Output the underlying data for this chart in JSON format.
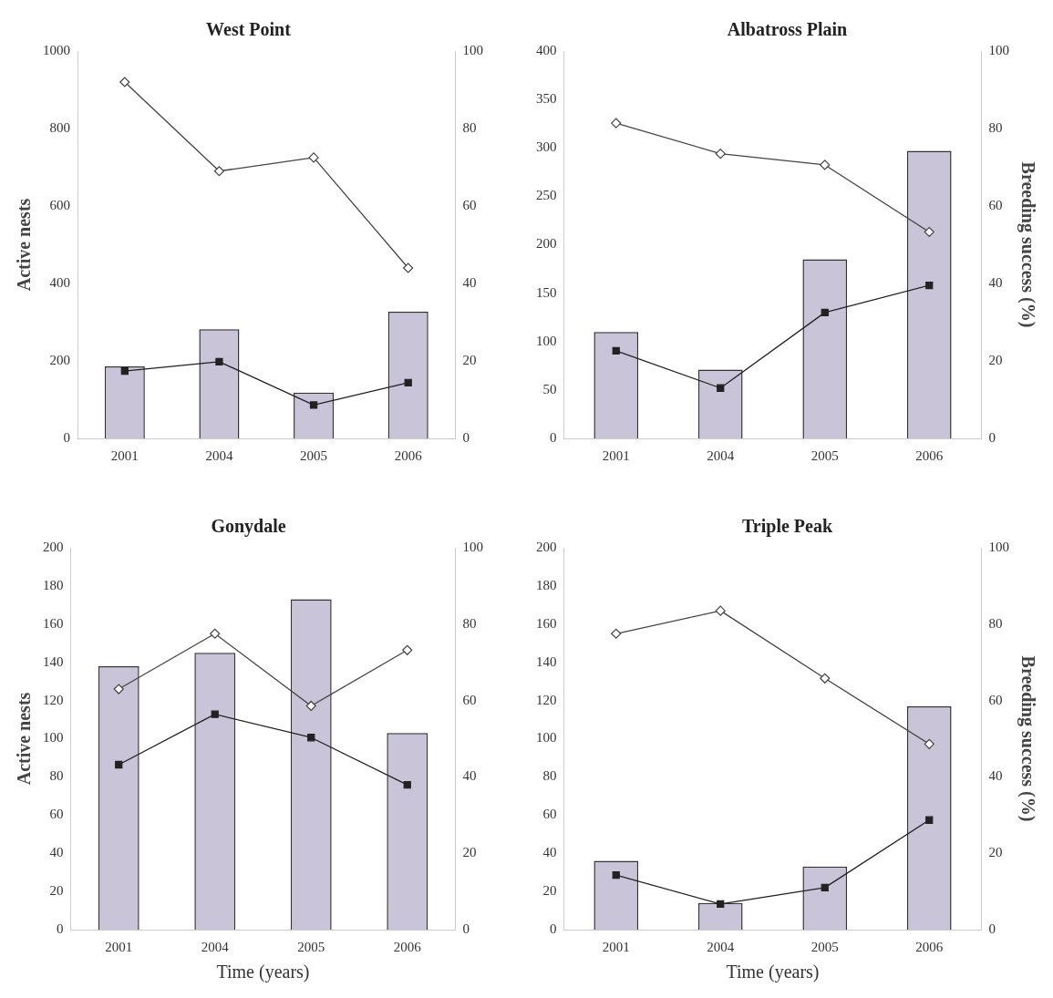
{
  "chart_data": [
    {
      "type": "bar",
      "title": "West Point",
      "ylabel": "Active nests",
      "categories": [
        "2001",
        "2004",
        "2005",
        "2006"
      ],
      "grid": false,
      "legend": false,
      "ylim": [
        0,
        1000
      ],
      "yticks": [
        0,
        200,
        400,
        600,
        800,
        1000
      ],
      "y2lim": [
        0,
        100
      ],
      "y2ticks": [
        0,
        20,
        40,
        60,
        80,
        100
      ],
      "series": [
        {
          "color": "#c9c4d8",
          "values": [
            186,
            282,
            118,
            327
          ]
        },
        {
          "type": "line",
          "axis": "y2",
          "color": "#444444",
          "marker": "diamond",
          "values": [
            92,
            69,
            72.5,
            44
          ]
        },
        {
          "type": "line",
          "axis": "y2",
          "color": "#222222",
          "marker": "square",
          "values": [
            17.4,
            19.8,
            8.6,
            14.4
          ]
        }
      ]
    },
    {
      "type": "bar",
      "title": "Albatross Plain",
      "y2label": "Breeding success (%)",
      "categories": [
        "2001",
        "2004",
        "2005",
        "2006"
      ],
      "grid": false,
      "legend": false,
      "ylim": [
        0,
        400
      ],
      "yticks": [
        0,
        50,
        100,
        150,
        200,
        250,
        300,
        350,
        400
      ],
      "y2lim": [
        0,
        100
      ],
      "y2ticks": [
        0,
        20,
        40,
        60,
        80,
        100
      ],
      "series": [
        {
          "color": "#c9c4d8",
          "values": [
            110,
            71,
            185,
            297
          ]
        },
        {
          "type": "line",
          "axis": "y2",
          "color": "#444444",
          "marker": "diamond",
          "values": [
            81.4,
            73.5,
            70.6,
            53.3
          ]
        },
        {
          "type": "line",
          "axis": "y2",
          "color": "#222222",
          "marker": "square",
          "values": [
            22.6,
            13,
            32.5,
            39.5
          ]
        }
      ]
    },
    {
      "type": "bar",
      "title": "Gonydale",
      "ylabel": "Active nests",
      "xlabel": "Time (years)",
      "categories": [
        "2001",
        "2004",
        "2005",
        "2006"
      ],
      "grid": false,
      "legend": false,
      "ylim": [
        0,
        200
      ],
      "yticks": [
        0,
        20,
        40,
        60,
        80,
        100,
        120,
        140,
        160,
        180,
        200
      ],
      "y2lim": [
        0,
        100
      ],
      "y2ticks": [
        0,
        20,
        40,
        60,
        80,
        100
      ],
      "series": [
        {
          "color": "#c9c4d8",
          "values": [
            138,
            145,
            173,
            103
          ]
        },
        {
          "type": "line",
          "axis": "y2",
          "color": "#444444",
          "marker": "diamond",
          "values": [
            63,
            77.5,
            58.6,
            73.2
          ]
        },
        {
          "type": "line",
          "axis": "y2",
          "color": "#222222",
          "marker": "square",
          "values": [
            43.2,
            56.4,
            50.3,
            37.9
          ]
        }
      ]
    },
    {
      "type": "bar",
      "title": "Triple Peak",
      "y2label": "Breeding success (%)",
      "xlabel": "Time (years)",
      "categories": [
        "2001",
        "2004",
        "2005",
        "2006"
      ],
      "grid": false,
      "legend": false,
      "ylim": [
        0,
        200
      ],
      "yticks": [
        0,
        20,
        40,
        60,
        80,
        100,
        120,
        140,
        160,
        180,
        200
      ],
      "y2lim": [
        0,
        100
      ],
      "y2ticks": [
        0,
        20,
        40,
        60,
        80,
        100
      ],
      "series": [
        {
          "color": "#c9c4d8",
          "values": [
            36,
            14,
            33,
            117
          ]
        },
        {
          "type": "line",
          "axis": "y2",
          "color": "#444444",
          "marker": "diamond",
          "values": [
            77.5,
            83.5,
            65.8,
            48.6
          ]
        },
        {
          "type": "line",
          "axis": "y2",
          "color": "#222222",
          "marker": "square",
          "values": [
            14.3,
            6.7,
            11,
            28.7
          ]
        }
      ]
    }
  ]
}
